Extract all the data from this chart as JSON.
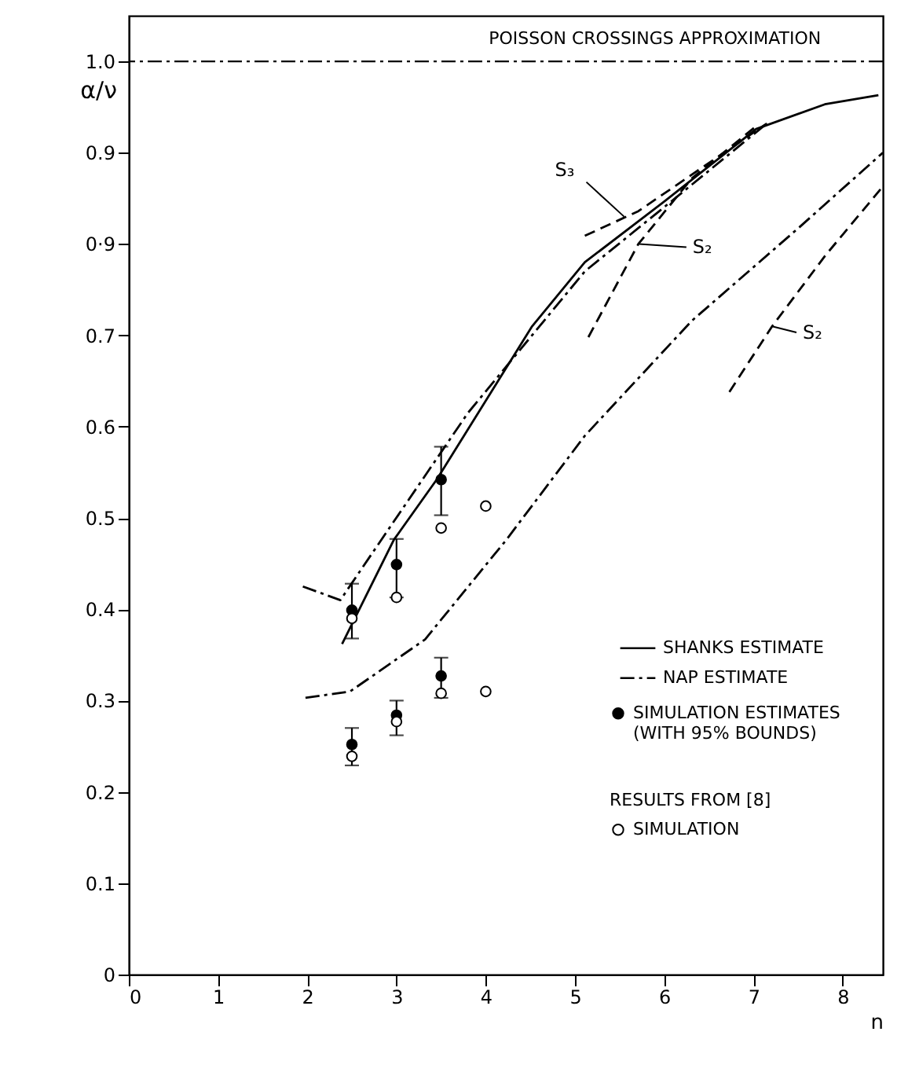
{
  "chart_data": {
    "type": "line",
    "title": "POISSON CROSSINGS APPROXIMATION",
    "xlabel": "n",
    "ylabel": "α/ν",
    "legend_title": "RESULTS FROM [8]",
    "xlim": [
      0,
      8.45
    ],
    "ylim": [
      0,
      1.05
    ],
    "xticks": [
      0,
      1,
      2,
      3,
      4,
      5,
      6,
      7,
      8
    ],
    "yticks": [
      0,
      0.1,
      0.2,
      0.3,
      0.4,
      0.5,
      0.6,
      0.7,
      {
        "value": 0.8,
        "label": "0·9"
      },
      0.9,
      {
        "value": 1,
        "label": "1.0"
      }
    ],
    "grid": false,
    "legend": "bottom right",
    "ref_lines": [
      {
        "axis": "y",
        "value": 1.0,
        "line_style": "dashdot"
      }
    ],
    "annotations": [
      {
        "text": "S₃",
        "x": 5.55,
        "y": 0.83
      },
      {
        "text": "S₂",
        "x": 5.72,
        "y": 0.8
      },
      {
        "text": "S₂",
        "x": 7.2,
        "y": 0.71
      }
    ],
    "series": [
      {
        "name": "SHANKS ESTIMATE",
        "line_style": "solid",
        "color": "#000000",
        "x": [
          2.39,
          2.97,
          3.45,
          4.52,
          5.11,
          6.02,
          7.03,
          7.8,
          8.4
        ],
        "values": [
          0.362,
          0.476,
          0.542,
          0.71,
          0.78,
          0.848,
          0.926,
          0.953,
          0.963
        ]
      },
      {
        "name": "NAP ESTIMATE",
        "line_style": "dashdot",
        "color": "#000000",
        "x": [
          1.95,
          2.37,
          2.85,
          3.8,
          5.11,
          6.02,
          7.15
        ],
        "values": [
          0.425,
          0.41,
          0.479,
          0.615,
          0.77,
          0.842,
          0.932
        ]
      },
      {
        "line_style": "dashdot",
        "color": "#000000",
        "x": [
          1.98,
          2.48,
          3.32,
          4.23,
          5.11,
          6.31,
          7.51,
          8.45
        ],
        "values": [
          0.303,
          0.31,
          0.367,
          0.476,
          0.59,
          0.716,
          0.818,
          0.9
        ]
      },
      {
        "line_style": "dashed",
        "color": "#000000",
        "x": [
          5.11,
          5.71,
          6.61,
          7.15
        ],
        "values": [
          0.809,
          0.836,
          0.896,
          0.932
        ]
      },
      {
        "line_style": "dashed",
        "color": "#000000",
        "x": [
          5.15,
          5.71,
          6.31,
          7.03
        ],
        "values": [
          0.698,
          0.8,
          0.872,
          0.929
        ]
      },
      {
        "line_style": "dashed",
        "color": "#000000",
        "x": [
          6.73,
          7.21,
          7.81,
          8.45
        ],
        "values": [
          0.638,
          0.71,
          0.788,
          0.863
        ]
      },
      {
        "name": "SIMULATION ESTIMATES (WITH 95% BOUNDS)",
        "type": "scatter",
        "marker": "circle",
        "color": "#000000",
        "x": [
          2.5,
          2.5,
          3,
          3,
          3.5,
          3.5
        ],
        "values": [
          0.399,
          0.252,
          0.449,
          0.284,
          0.542,
          0.327
        ],
        "errors": [
          [
            0.368,
            0.428
          ],
          [
            0.229,
            0.27
          ],
          [
            0.413,
            0.477
          ],
          [
            0.262,
            0.3
          ],
          [
            0.503,
            0.578
          ],
          [
            0.303,
            0.347
          ]
        ]
      },
      {
        "name": "SIMULATION",
        "type": "scatter",
        "marker": "circle",
        "color": "#ffffff",
        "x": [
          2.5,
          2.5,
          3,
          3,
          3.5,
          3.5,
          4,
          4
        ],
        "values": [
          0.39,
          0.239,
          0.413,
          0.277,
          0.489,
          0.308,
          0.513,
          0.31
        ]
      }
    ]
  }
}
